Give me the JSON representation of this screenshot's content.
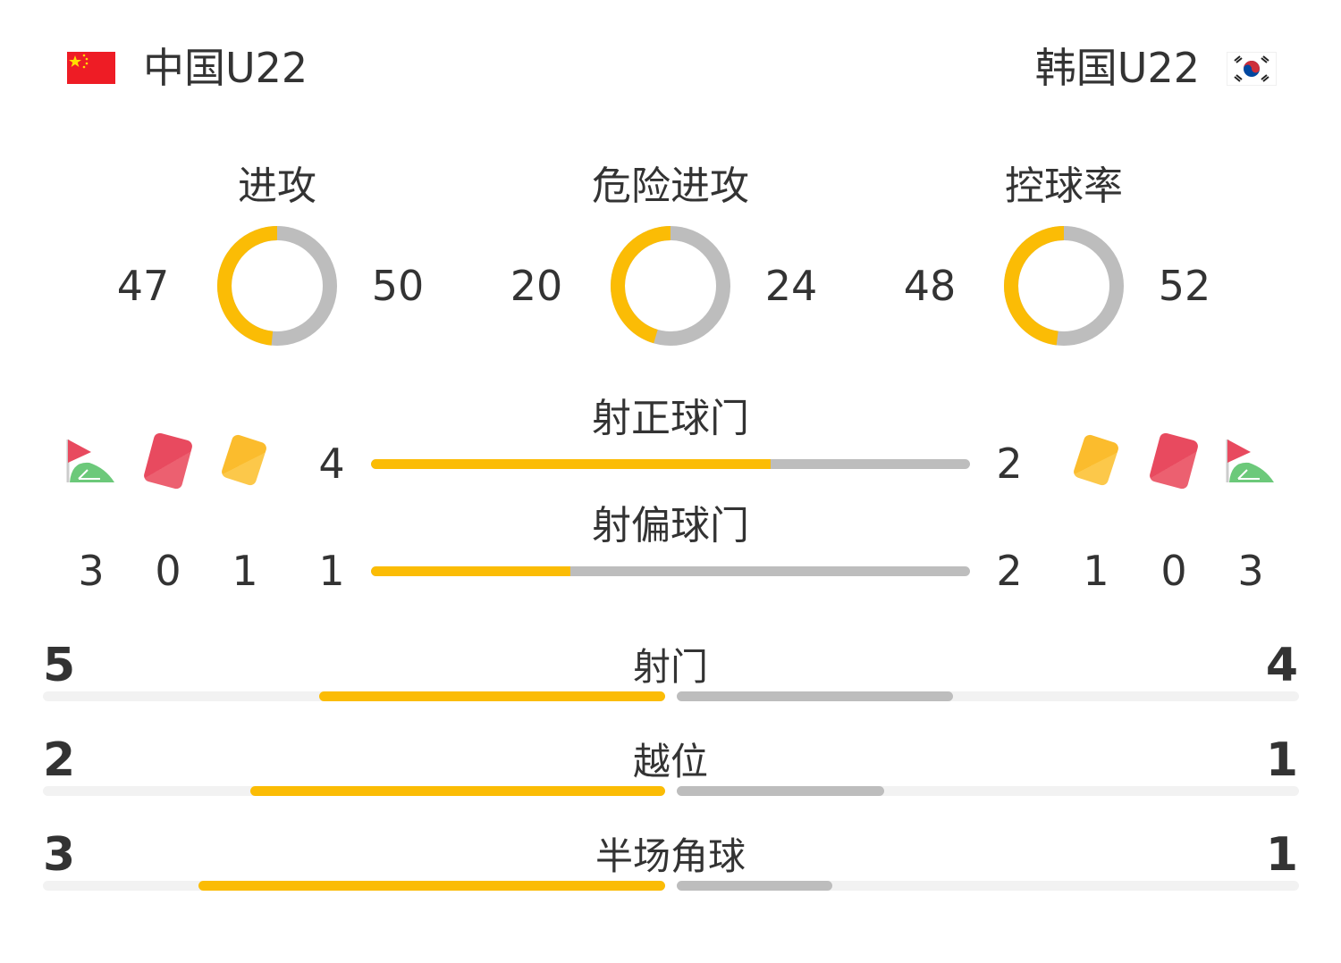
{
  "home": {
    "name": "中国U22",
    "flag": "china-flag-icon"
  },
  "away": {
    "name": "韩国U22",
    "flag": "korea-flag-icon"
  },
  "colors": {
    "home": "#fbbc05",
    "away": "#bdbdbd",
    "track": "#f2f2f2",
    "text": "#333333"
  },
  "rings": [
    {
      "label": "进攻",
      "home": 47,
      "away": 50
    },
    {
      "label": "危险进攻",
      "home": 20,
      "away": 24
    },
    {
      "label": "控球率",
      "home": 48,
      "away": 52
    }
  ],
  "mid_bars": [
    {
      "label": "射正球门",
      "home": 4,
      "away": 2
    },
    {
      "label": "射偏球门",
      "home": 1,
      "away": 2
    }
  ],
  "events": {
    "icons": [
      "corner-flag-icon",
      "red-card-icon",
      "yellow-card-icon"
    ],
    "home": {
      "corners": 3,
      "red_cards": 0,
      "yellow_cards": 1
    },
    "away": {
      "yellow_cards": 1,
      "red_cards": 0,
      "corners": 3
    }
  },
  "bottom_bars": [
    {
      "label": "射门",
      "home": 5,
      "away": 4
    },
    {
      "label": "越位",
      "home": 2,
      "away": 1
    },
    {
      "label": "半场角球",
      "home": 3,
      "away": 1
    }
  ]
}
